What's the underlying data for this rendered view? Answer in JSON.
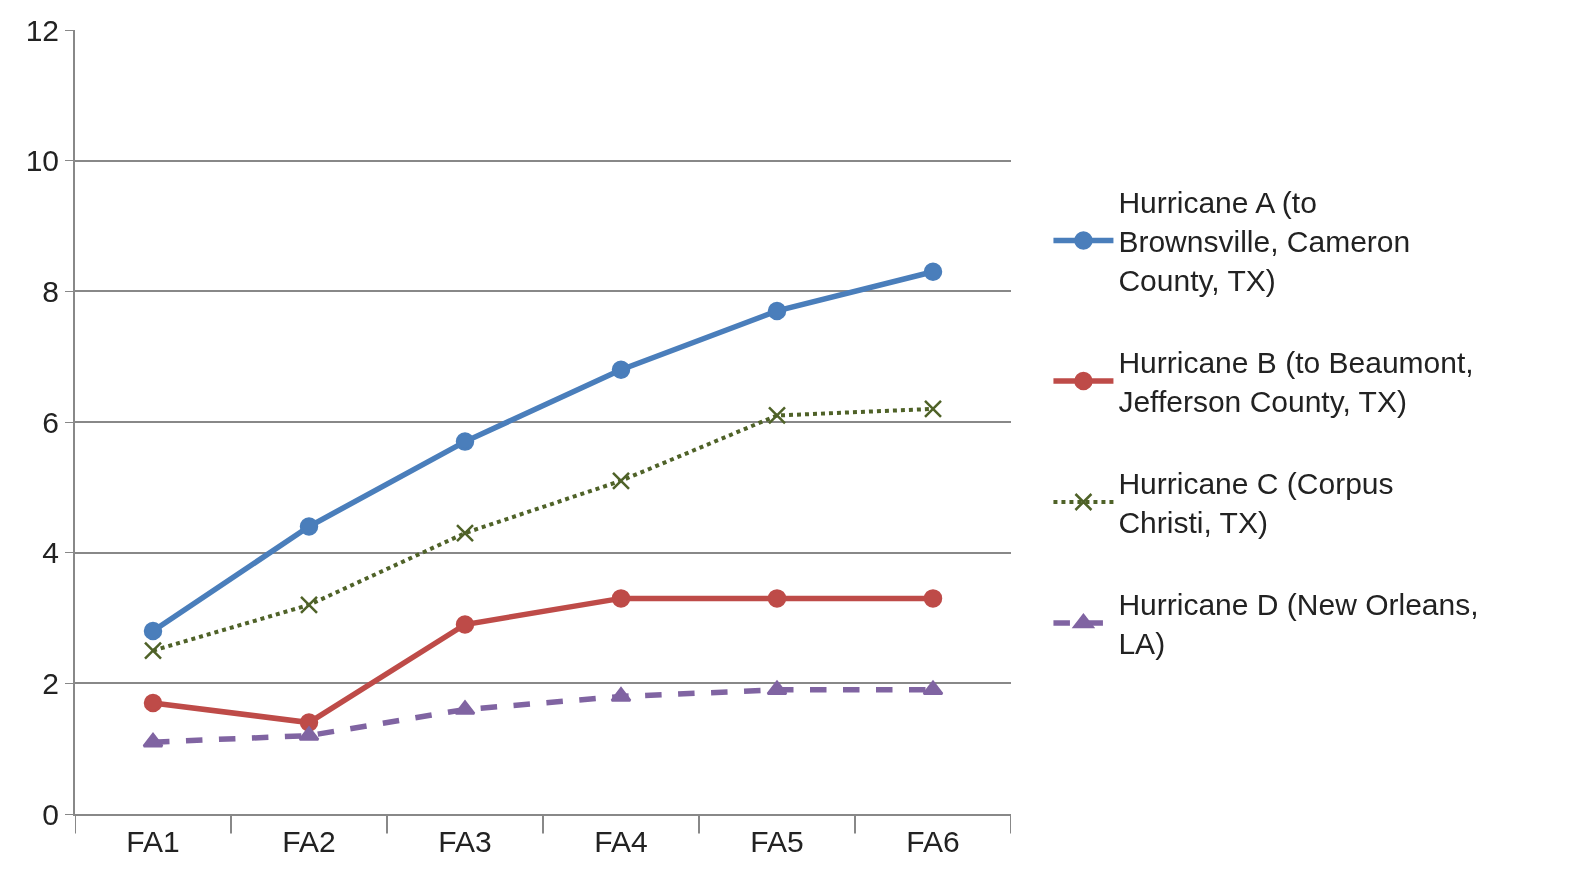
{
  "chart_data": {
    "type": "line",
    "categories": [
      "FA1",
      "FA2",
      "FA3",
      "FA4",
      "FA5",
      "FA6"
    ],
    "series": [
      {
        "name": "Hurricane A (to Brownsville, Cameron County, TX)",
        "color": "#4a7ebb",
        "marker": "circle",
        "line_style": "solid",
        "values": [
          2.8,
          4.4,
          5.7,
          6.8,
          7.7,
          8.3
        ]
      },
      {
        "name": "Hurricane B (to Beaumont, Jefferson County, TX)",
        "color": "#be4b48",
        "marker": "circle",
        "line_style": "solid",
        "values": [
          1.7,
          1.4,
          2.9,
          3.3,
          3.3,
          3.3
        ]
      },
      {
        "name": "Hurricane C (Corpus Christi, TX)",
        "color": "#4f6228",
        "marker": "cross",
        "line_style": "dotted",
        "values": [
          2.5,
          3.2,
          4.3,
          5.1,
          6.1,
          6.2
        ]
      },
      {
        "name": "Hurricane D (New Orleans, LA)",
        "color": "#8064a2",
        "marker": "triangle",
        "line_style": "dashed",
        "values": [
          1.1,
          1.2,
          1.6,
          1.8,
          1.9,
          1.9
        ]
      }
    ],
    "ylim": [
      0,
      12
    ],
    "yticks": [
      0,
      2,
      4,
      6,
      8,
      10,
      12
    ],
    "grid": "y",
    "legend": "right"
  }
}
